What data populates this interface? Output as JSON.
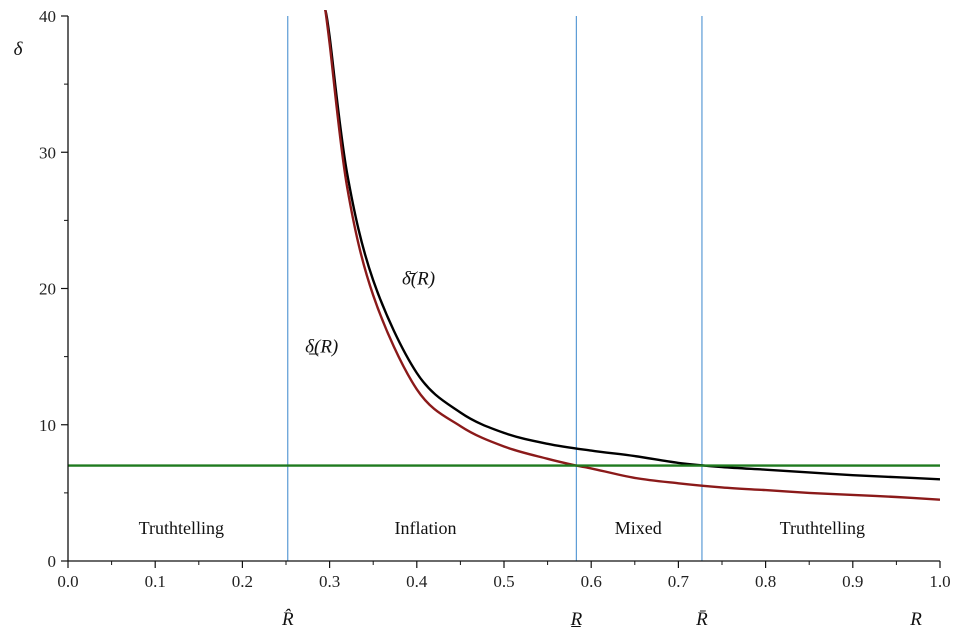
{
  "chart_data": {
    "type": "line",
    "xlabel": "R",
    "ylabel": "δ",
    "xlim": [
      0,
      1
    ],
    "ylim": [
      0,
      40
    ],
    "x_ticks": [
      "0.0",
      "0.1",
      "0.2",
      "0.3",
      "0.4",
      "0.5",
      "0.6",
      "0.7",
      "0.8",
      "0.9",
      "1.0"
    ],
    "y_ticks": [
      "0",
      "10",
      "20",
      "30",
      "40"
    ],
    "grid": false,
    "series": [
      {
        "name": "δ̄(R)",
        "color": "#000000",
        "x": [
          0.295,
          0.3,
          0.32,
          0.35,
          0.4,
          0.45,
          0.5,
          0.55,
          0.6,
          0.65,
          0.7,
          0.75,
          0.8,
          0.85,
          0.9,
          0.95,
          1.0
        ],
        "y": [
          40.5,
          38.5,
          28.5,
          20.6,
          13.8,
          10.9,
          9.4,
          8.6,
          8.1,
          7.7,
          7.2,
          6.9,
          6.7,
          6.5,
          6.3,
          6.15,
          6.0
        ]
      },
      {
        "name": "δ̲(R)",
        "color": "#8b1a1a",
        "x": [
          0.295,
          0.3,
          0.32,
          0.35,
          0.4,
          0.45,
          0.5,
          0.55,
          0.583,
          0.6,
          0.65,
          0.7,
          0.75,
          0.8,
          0.85,
          0.9,
          0.95,
          1.0
        ],
        "y": [
          40.5,
          38.0,
          27.5,
          19.5,
          12.6,
          9.9,
          8.4,
          7.5,
          7.0,
          6.8,
          6.1,
          5.7,
          5.4,
          5.2,
          5.0,
          4.85,
          4.7,
          4.5
        ]
      },
      {
        "name": "",
        "color": "#1f7a1f",
        "x": [
          0.0,
          1.0
        ],
        "y": [
          7.0,
          7.0
        ]
      }
    ],
    "vlines": [
      {
        "x": 0.252,
        "label": "R̂",
        "color": "#5b9bd5"
      },
      {
        "x": 0.583,
        "label": "R̲",
        "color": "#5b9bd5"
      },
      {
        "x": 0.727,
        "label": "R̄",
        "color": "#5b9bd5"
      }
    ],
    "curve_labels": [
      {
        "text": "δ̄(R)",
        "x": 0.383,
        "y": 20.0
      },
      {
        "text": "δ̲(R)",
        "x": 0.272,
        "y": 15.0
      }
    ],
    "regions": [
      {
        "label": "Truthtelling",
        "x": 0.13,
        "y": 2.0
      },
      {
        "label": "Inflation",
        "x": 0.41,
        "y": 2.0
      },
      {
        "label": "Mixed",
        "x": 0.654,
        "y": 2.0
      },
      {
        "label": "Truthtelling",
        "x": 0.865,
        "y": 2.0
      }
    ]
  }
}
